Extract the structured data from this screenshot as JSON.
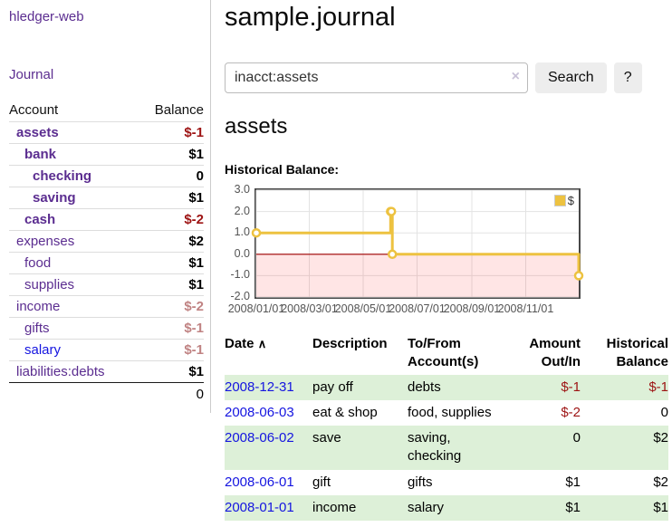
{
  "app": {
    "brand": "hledger-web",
    "nav_journal": "Journal"
  },
  "sidebar": {
    "account_header": "Account",
    "balance_header": "Balance",
    "accounts": [
      {
        "name": "assets",
        "depth": 0,
        "balance": "$-1",
        "bold": true,
        "neg": "strong"
      },
      {
        "name": "bank",
        "depth": 1,
        "balance": "$1",
        "bold": true
      },
      {
        "name": "checking",
        "depth": 2,
        "balance": "0",
        "bold": true
      },
      {
        "name": "saving",
        "depth": 2,
        "balance": "$1",
        "bold": true
      },
      {
        "name": "cash",
        "depth": 1,
        "balance": "$-2",
        "bold": true,
        "neg": "strong"
      },
      {
        "name": "expenses",
        "depth": 0,
        "balance": "$2"
      },
      {
        "name": "food",
        "depth": 1,
        "balance": "$1"
      },
      {
        "name": "supplies",
        "depth": 1,
        "balance": "$1"
      },
      {
        "name": "income",
        "depth": 0,
        "balance": "$-2",
        "neg": "soft"
      },
      {
        "name": "gifts",
        "depth": 1,
        "balance": "$-1",
        "neg": "soft"
      },
      {
        "name": "salary",
        "depth": 1,
        "balance": "$-1",
        "neg": "soft",
        "blue": true
      },
      {
        "name": "liabilities:debts",
        "depth": 0,
        "balance": "$1"
      }
    ],
    "total": "0"
  },
  "main": {
    "title": "sample.journal",
    "search": {
      "value": "inacct:assets",
      "clear_icon": "×",
      "button": "Search",
      "help_button": "?"
    },
    "account_heading": "assets",
    "chart_label": "Historical Balance:"
  },
  "chart_data": {
    "type": "line",
    "style": "step-after",
    "marker": "open-circle",
    "title": "Historical Balance:",
    "legend": {
      "label": "$",
      "position": "top-right"
    },
    "series": [
      {
        "name": "$",
        "color": "#EDC240",
        "points": [
          [
            "2008-01-01",
            1
          ],
          [
            "2008-06-01",
            2
          ],
          [
            "2008-06-02",
            2
          ],
          [
            "2008-06-03",
            0
          ],
          [
            "2008-12-31",
            -1
          ]
        ]
      }
    ],
    "x_range": [
      "2008-01-01",
      "2008-12-31"
    ],
    "ylim": [
      -2,
      3
    ],
    "y_ticks": [
      "3.0",
      "2.0",
      "1.0",
      "0.0",
      "-1.0",
      "-2.0"
    ],
    "x_ticks": [
      "2008/01/01",
      "2008/03/01",
      "2008/05/01",
      "2008/07/01",
      "2008/09/01",
      "2008/11/01"
    ],
    "grid": true,
    "grid_color": "#e3e3e3",
    "zero_line_color": "#a00000",
    "negative_region_color": "rgba(255,0,0,0.10)",
    "border_color": "#474747"
  },
  "register": {
    "sort_icon": "∧",
    "headers": {
      "date": "Date",
      "description": "Description",
      "accounts": "To/From Account(s)",
      "amount": "Amount Out/In",
      "balance": "Historical Balance"
    },
    "rows": [
      {
        "date": "2008-12-31",
        "description": "pay off",
        "accounts": "debts",
        "amount": "$-1",
        "balance": "$-1",
        "amount_neg": true,
        "balance_neg": true
      },
      {
        "date": "2008-06-03",
        "description": "eat & shop",
        "accounts": "food, supplies",
        "amount": "$-2",
        "balance": "0",
        "amount_neg": true,
        "balance_neg": false
      },
      {
        "date": "2008-06-02",
        "description": "save",
        "accounts": "saving, checking",
        "amount": "0",
        "balance": "$2",
        "amount_neg": false,
        "balance_neg": false
      },
      {
        "date": "2008-06-01",
        "description": "gift",
        "accounts": "gifts",
        "amount": "$1",
        "balance": "$2",
        "amount_neg": false,
        "balance_neg": false
      },
      {
        "date": "2008-01-01",
        "description": "income",
        "accounts": "salary",
        "amount": "$1",
        "balance": "$1",
        "amount_neg": false,
        "balance_neg": false
      }
    ]
  }
}
